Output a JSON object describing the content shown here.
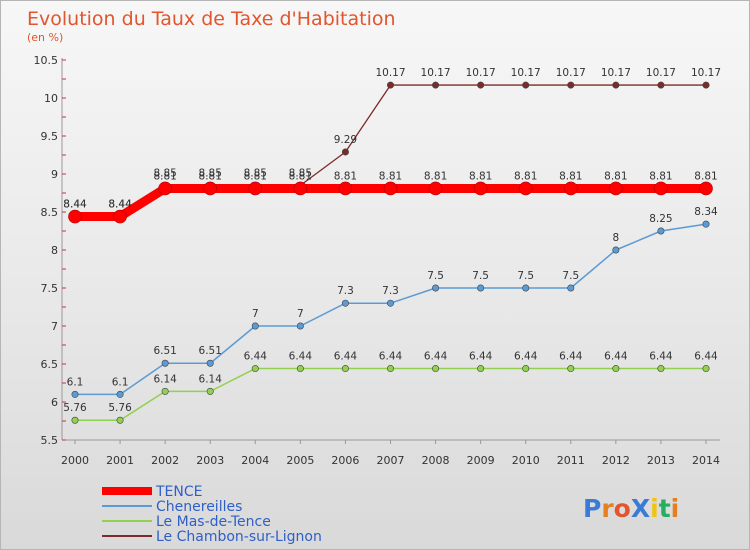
{
  "chart_data": {
    "type": "line",
    "title": "Evolution du Taux de Taxe d'Habitation",
    "subtitle": "(en %)",
    "x": [
      "2000",
      "2001",
      "2002",
      "2003",
      "2004",
      "2005",
      "2006",
      "2007",
      "2008",
      "2009",
      "2010",
      "2011",
      "2012",
      "2013",
      "2014"
    ],
    "ylim": [
      5.5,
      10.5
    ],
    "yticks": [
      "5.5",
      "6",
      "6.5",
      "7",
      "7.5",
      "8",
      "8.5",
      "9",
      "9.5",
      "10",
      "10.5"
    ],
    "grid": false,
    "legend_position": "bottom-left",
    "series": [
      {
        "name": "TENCE",
        "color": "#ff0000",
        "values": [
          8.44,
          8.44,
          8.81,
          8.81,
          8.81,
          8.81,
          8.81,
          8.81,
          8.81,
          8.81,
          8.81,
          8.81,
          8.81,
          8.81,
          8.81
        ]
      },
      {
        "name": "Chenereilles",
        "color": "#5b9bd5",
        "values": [
          6.1,
          6.1,
          6.51,
          6.51,
          7,
          7,
          7.3,
          7.3,
          7.5,
          7.5,
          7.5,
          7.5,
          8,
          8.25,
          8.34
        ]
      },
      {
        "name": "Le Mas-de-Tence",
        "color": "#92d050",
        "values": [
          5.76,
          5.76,
          6.14,
          6.14,
          6.44,
          6.44,
          6.44,
          6.44,
          6.44,
          6.44,
          6.44,
          6.44,
          6.44,
          6.44,
          6.44
        ]
      },
      {
        "name": "Le Chambon-sur-Lignon",
        "color": "#7b2b2b",
        "values": [
          8.44,
          8.44,
          8.85,
          8.85,
          8.85,
          8.85,
          9.29,
          10.17,
          10.17,
          10.17,
          10.17,
          10.17,
          10.17,
          10.17,
          10.17
        ]
      }
    ]
  },
  "logo": {
    "text": "ProXiti"
  }
}
